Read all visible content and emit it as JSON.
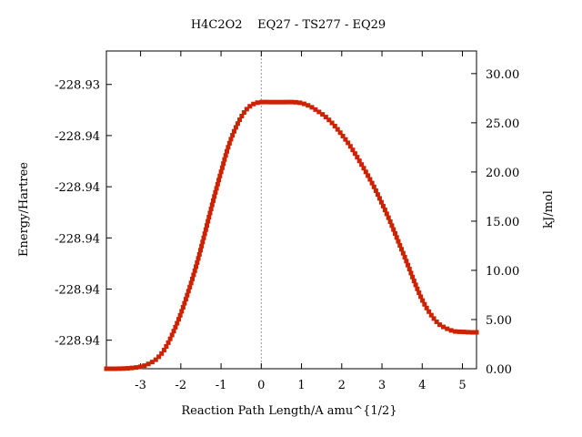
{
  "chart_data": {
    "type": "line",
    "title": "H4C2O2    EQ27 - TS277 - EQ29",
    "xlabel": "Reaction Path Length/A amu^{1/2}",
    "ylabel_left": "Energy/Hartree",
    "ylabel_right": "kJ/mol",
    "xlim": [
      -3.85,
      5.35
    ],
    "x_ticks": [
      -3,
      -2,
      -1,
      0,
      1,
      2,
      3,
      4,
      5
    ],
    "x_tick_labels": [
      "-3",
      "-2",
      "-1",
      "0",
      "1",
      "2",
      "3",
      "4",
      "5"
    ],
    "ylim_right": [
      0,
      32.3
    ],
    "right_ticks": [
      0,
      5,
      10,
      15,
      20,
      25,
      30
    ],
    "right_tick_labels": [
      "0.00",
      "5.00",
      "10.00",
      "15.00",
      "20.00",
      "25.00",
      "30.00"
    ],
    "left_tick_positions_kjmol": [
      2.9,
      8.1,
      13.3,
      18.5,
      23.7,
      28.9
    ],
    "left_tick_labels": [
      "-228.94",
      "-228.94",
      "-228.94",
      "-228.94",
      "-228.94",
      "-228.93"
    ],
    "ts_x": 0,
    "grid": false,
    "series": [
      {
        "color": "#008800",
        "marker_color": "#cc2200",
        "x": [
          -3.85,
          -3.6,
          -3.3,
          -3.0,
          -2.8,
          -2.6,
          -2.4,
          -2.2,
          -2.0,
          -1.8,
          -1.6,
          -1.4,
          -1.2,
          -1.0,
          -0.8,
          -0.6,
          -0.4,
          -0.2,
          0.0,
          0.2,
          0.5,
          0.8,
          1.0,
          1.2,
          1.4,
          1.6,
          1.8,
          2.0,
          2.2,
          2.4,
          2.6,
          2.8,
          3.0,
          3.2,
          3.4,
          3.6,
          3.8,
          4.0,
          4.2,
          4.4,
          4.6,
          4.8,
          5.0,
          5.2,
          5.35
        ],
        "y": [
          0.0,
          0.0,
          0.05,
          0.2,
          0.5,
          1.0,
          2.0,
          3.6,
          5.6,
          8.0,
          10.7,
          13.8,
          17.0,
          20.0,
          22.8,
          24.8,
          26.2,
          26.9,
          27.1,
          27.1,
          27.1,
          27.1,
          27.0,
          26.7,
          26.2,
          25.6,
          24.8,
          23.8,
          22.7,
          21.4,
          20.0,
          18.5,
          16.8,
          15.0,
          13.0,
          11.0,
          8.9,
          7.0,
          5.6,
          4.6,
          4.1,
          3.8,
          3.75,
          3.7,
          3.7
        ]
      }
    ]
  }
}
